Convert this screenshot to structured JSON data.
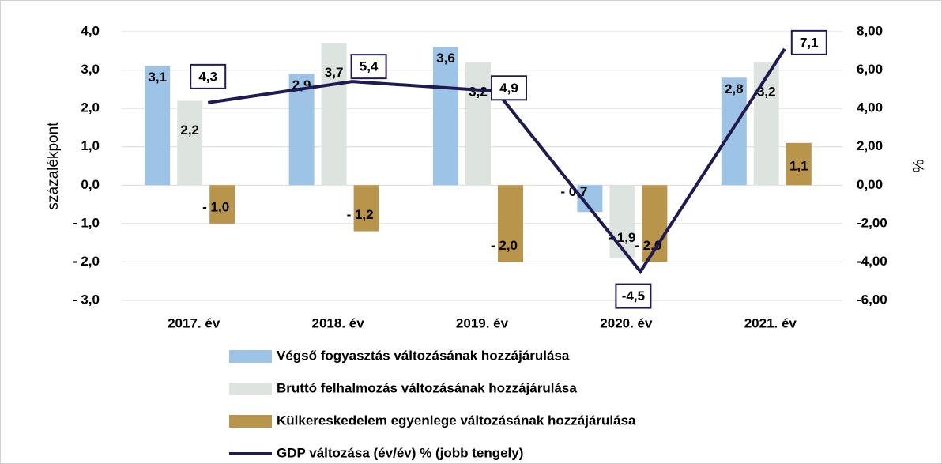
{
  "chart_data": {
    "type": "bar_line",
    "categories": [
      "2017. év",
      "2018. év",
      "2019. év",
      "2020. év",
      "2021. év"
    ],
    "ylabel": "százalékpont",
    "y2label": "%",
    "ylim": [
      -3,
      4
    ],
    "yticks": [
      {
        "value": -3,
        "label": "- 3,0"
      },
      {
        "value": -2,
        "label": "- 2,0"
      },
      {
        "value": -1,
        "label": "- 1,0"
      },
      {
        "value": 0,
        "label": "0,0"
      },
      {
        "value": 1,
        "label": "1,0"
      },
      {
        "value": 2,
        "label": "2,0"
      },
      {
        "value": 3,
        "label": "3,0"
      },
      {
        "value": 4,
        "label": "4,0"
      }
    ],
    "y2lim": [
      -6,
      8
    ],
    "y2ticks": [
      {
        "value": -6,
        "label": "-6,00"
      },
      {
        "value": -4,
        "label": "-4,00"
      },
      {
        "value": -2,
        "label": "-2,00"
      },
      {
        "value": 0,
        "label": "0,00"
      },
      {
        "value": 2,
        "label": "2,00"
      },
      {
        "value": 4,
        "label": "4,00"
      },
      {
        "value": 6,
        "label": "6,00"
      },
      {
        "value": 8,
        "label": "8,00"
      }
    ],
    "grid": true,
    "series": [
      {
        "name": "Végső fogyasztás változásának hozzájárulása",
        "type": "bar",
        "color": "#9dc3e6",
        "values": [
          3.1,
          2.9,
          3.6,
          -0.7,
          2.8
        ],
        "value_labels": [
          "3,1",
          "2,9",
          "3,6",
          "- 0,7",
          "2,8"
        ]
      },
      {
        "name": "Bruttó felhalmozás változásának hozzájárulása",
        "type": "bar",
        "color": "#dde4e0",
        "values": [
          2.2,
          3.7,
          3.2,
          -1.9,
          3.2
        ],
        "value_labels": [
          "2,2",
          "3,7",
          "3,2",
          "- 1,9",
          "3,2"
        ]
      },
      {
        "name": "Külkereskedelem egyenlege változásának hozzájárulása",
        "type": "bar",
        "color": "#b8954a",
        "values": [
          -1.0,
          -1.2,
          -2.0,
          -2.0,
          1.1
        ],
        "value_labels": [
          "- 1,0",
          "- 1,2",
          "- 2,0",
          "- 2,0",
          "1,1"
        ]
      },
      {
        "name": "GDP változása (év/év) % (jobb tengely)",
        "type": "line",
        "axis": "y2",
        "color": "#1f1a4f",
        "values": [
          4.3,
          5.4,
          4.9,
          -4.5,
          7.1
        ],
        "value_labels": [
          "4,3",
          "5,4",
          "4,9",
          "-4,5",
          "7,1"
        ]
      }
    ]
  }
}
